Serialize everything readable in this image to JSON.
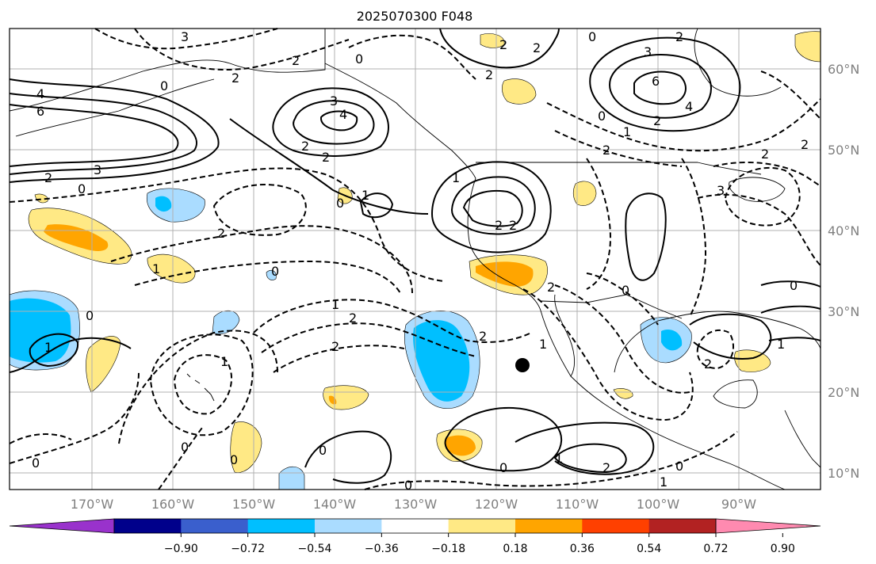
{
  "title": "2025070300 F048",
  "longitude_labels": [
    "170°W",
    "160°W",
    "150°W",
    "140°W",
    "130°W",
    "120°W",
    "110°W",
    "100°W",
    "90°W"
  ],
  "latitude_labels": [
    "60°N",
    "50°N",
    "40°N",
    "30°N",
    "20°N",
    "10°N"
  ],
  "colorbar": {
    "tick_labels": [
      "−0.90",
      "−0.72",
      "−0.54",
      "−0.36",
      "−0.18",
      "0.18",
      "0.36",
      "0.54",
      "0.72",
      "0.90"
    ],
    "bins": [
      {
        "color": "#9932cc"
      },
      {
        "color": "#00008b"
      },
      {
        "color": "#3a5fcd"
      },
      {
        "color": "#00bfff"
      },
      {
        "color": "#aadcff"
      },
      {
        "color": "#ffffff"
      },
      {
        "color": "#ffe985"
      },
      {
        "color": "#ffa500"
      },
      {
        "color": "#ff4000"
      },
      {
        "color": "#b22222"
      },
      {
        "color": "#ff8ab0"
      }
    ]
  },
  "contour_labels": [
    "3",
    "2",
    "2",
    "0",
    "2",
    "2",
    "0",
    "3",
    "2",
    "2",
    "4",
    "6",
    "3",
    "0",
    "2",
    "3",
    "4",
    "2",
    "2",
    "1",
    "2",
    "0",
    "1",
    "2",
    "2",
    "2",
    "0",
    "0",
    "0",
    "3",
    "2",
    "0",
    "1",
    "1",
    "1",
    "2",
    "2",
    "0",
    "1",
    "2",
    "1",
    "0",
    "0",
    "2",
    "0",
    "1",
    "2",
    "0",
    "0",
    "1",
    "0",
    "1",
    "6",
    "4",
    "2",
    "0",
    "2",
    "2",
    "0",
    "1"
  ]
}
